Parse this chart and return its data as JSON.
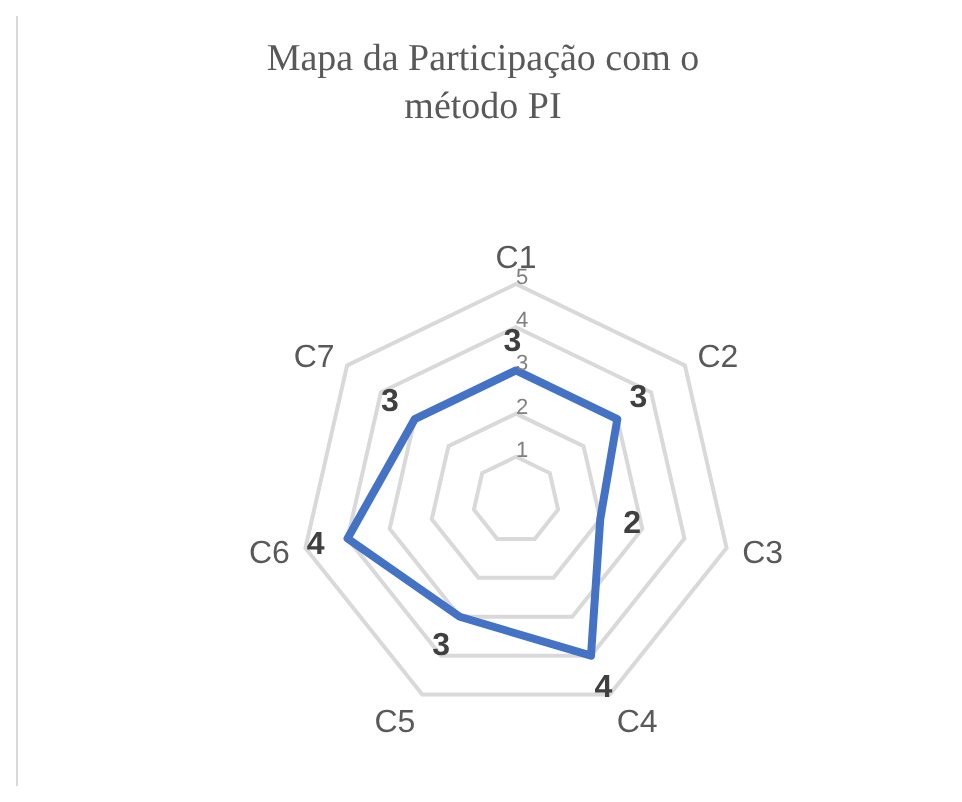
{
  "chart_data": {
    "type": "radar",
    "title": "Mapa da Participação com o método PI",
    "categories": [
      "C1",
      "C2",
      "C3",
      "C4",
      "C5",
      "C6",
      "C7"
    ],
    "series": [
      {
        "color": "#4472c4",
        "values": [
          3,
          3,
          2,
          4,
          3,
          4,
          3
        ]
      }
    ],
    "ylim": [
      0,
      5
    ],
    "yticks": [
      1,
      2,
      3,
      4,
      5
    ],
    "grid": true,
    "data_labels": true,
    "marker": "none"
  }
}
